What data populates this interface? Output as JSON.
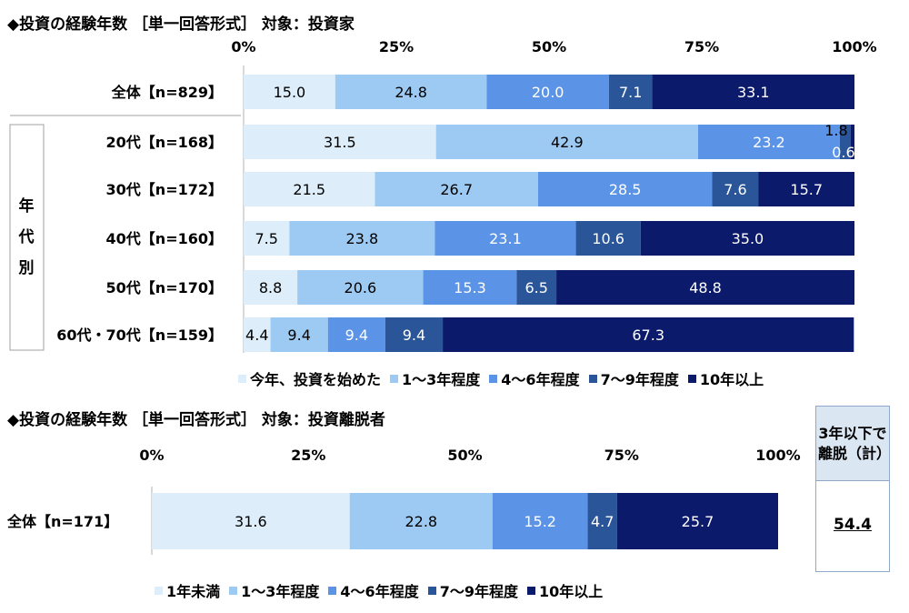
{
  "chart_data": [
    {
      "type": "stacked-bar-horizontal",
      "title": "◆投資の経験年数 ［単一回答形式］ 対象：投資家",
      "x_ticks": [
        "0%",
        "25%",
        "50%",
        "75%",
        "100%"
      ],
      "xlim": [
        0,
        100
      ],
      "group_label": "年代別",
      "legend": [
        "今年、投資を始めた",
        "1～3年程度",
        "4～6年程度",
        "7～9年程度",
        "10年以上"
      ],
      "colors": [
        "#ddeefa",
        "#9dcaf2",
        "#5b93e6",
        "#2a5599",
        "#0b1a6b"
      ],
      "categories": [
        "全体【n=829】",
        "20代【n=168】",
        "30代【n=172】",
        "40代【n=160】",
        "50代【n=170】",
        "60代・70代【n=159】"
      ],
      "series": [
        {
          "name": "今年、投資を始めた",
          "values": [
            15.0,
            31.5,
            21.5,
            7.5,
            8.8,
            4.4
          ]
        },
        {
          "name": "1～3年程度",
          "values": [
            24.8,
            42.9,
            26.7,
            23.8,
            20.6,
            9.4
          ]
        },
        {
          "name": "4～6年程度",
          "values": [
            20.0,
            23.2,
            28.5,
            23.1,
            15.3,
            9.4
          ]
        },
        {
          "name": "7～9年程度",
          "values": [
            7.1,
            1.8,
            7.6,
            10.6,
            6.5,
            9.4
          ]
        },
        {
          "name": "10年以上",
          "values": [
            33.1,
            0.6,
            15.7,
            35.0,
            48.8,
            67.3
          ]
        }
      ]
    },
    {
      "type": "stacked-bar-horizontal",
      "title": "◆投資の経験年数 ［単一回答形式］ 対象：投資離脱者",
      "x_ticks": [
        "0%",
        "25%",
        "50%",
        "75%",
        "100%"
      ],
      "xlim": [
        0,
        100
      ],
      "legend": [
        "1年未満",
        "1～3年程度",
        "4～6年程度",
        "7～9年程度",
        "10年以上"
      ],
      "colors": [
        "#ddeefa",
        "#9dcaf2",
        "#5b93e6",
        "#2a5599",
        "#0b1a6b"
      ],
      "categories": [
        "全体【n=171】"
      ],
      "series": [
        {
          "name": "1年未満",
          "values": [
            31.6
          ]
        },
        {
          "name": "1～3年程度",
          "values": [
            22.8
          ]
        },
        {
          "name": "4～6年程度",
          "values": [
            15.2
          ]
        },
        {
          "name": "7～9年程度",
          "values": [
            4.7
          ]
        },
        {
          "name": "10年以上",
          "values": [
            25.7
          ]
        }
      ]
    }
  ],
  "summary": {
    "header": "3年以下で離脱（計）",
    "value": "54.4"
  }
}
